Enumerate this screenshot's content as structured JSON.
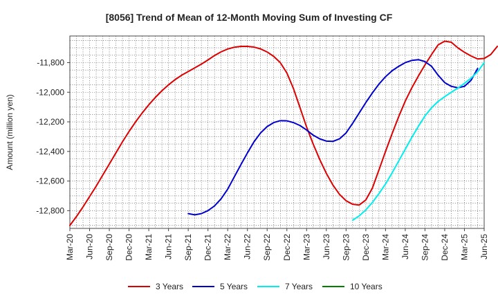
{
  "chart_data": {
    "type": "line",
    "title": "[8056]  Trend of Mean of 12-Month Moving Sum of Investing CF",
    "xlabel": "",
    "ylabel": "Amount (million yen)",
    "ylim": [
      -12920,
      -11620
    ],
    "yticks": [
      -11800,
      -12000,
      -12200,
      -12400,
      -12600,
      -12800
    ],
    "ytick_labels": [
      "-11,800",
      "-12,000",
      "-12,200",
      "-12,400",
      "-12,600",
      "-12,800"
    ],
    "xticks": [
      "Mar-20",
      "Jun-20",
      "Sep-20",
      "Dec-20",
      "Mar-21",
      "Jun-21",
      "Sep-21",
      "Dec-21",
      "Mar-22",
      "Jun-22",
      "Sep-22",
      "Dec-22",
      "Mar-23",
      "Jun-23",
      "Sep-23",
      "Dec-23",
      "Mar-24",
      "Jun-24",
      "Sep-24",
      "Dec-24",
      "Mar-25",
      "Jun-25"
    ],
    "grid": true,
    "legend_position": "bottom",
    "series": [
      {
        "name": "3 Years",
        "color": "#dd0000",
        "start_index": 0,
        "values": [
          -12900,
          -12840,
          -12775,
          -12705,
          -12635,
          -12560,
          -12485,
          -12410,
          -12335,
          -12265,
          -12200,
          -12140,
          -12085,
          -12035,
          -11990,
          -11950,
          -11915,
          -11885,
          -11860,
          -11835,
          -11810,
          -11782,
          -11752,
          -11727,
          -11708,
          -11696,
          -11690,
          -11690,
          -11695,
          -11707,
          -11728,
          -11758,
          -11800,
          -11870,
          -11975,
          -12105,
          -12235,
          -12350,
          -12455,
          -12548,
          -12627,
          -12690,
          -12733,
          -12757,
          -12762,
          -12728,
          -12648,
          -12525,
          -12400,
          -12280,
          -12165,
          -12060,
          -11970,
          -11890,
          -11815,
          -11745,
          -11680,
          -11655,
          -11662,
          -11700,
          -11730,
          -11755,
          -11775,
          -11772,
          -11745,
          -11690
        ]
      },
      {
        "name": "5 Years",
        "color": "#0000cc",
        "start_index": 18,
        "values": [
          -12820,
          -12828,
          -12820,
          -12800,
          -12768,
          -12720,
          -12655,
          -12572,
          -12490,
          -12410,
          -12335,
          -12275,
          -12232,
          -12205,
          -12192,
          -12193,
          -12205,
          -12225,
          -12255,
          -12290,
          -12315,
          -12330,
          -12332,
          -12315,
          -12275,
          -12210,
          -12140,
          -12070,
          -12005,
          -11945,
          -11895,
          -11855,
          -11825,
          -11800,
          -11785,
          -11780,
          -11793,
          -11825,
          -11885,
          -11935,
          -11960,
          -11970,
          -11960,
          -11920,
          -11840
        ]
      },
      {
        "name": "7 Years",
        "color": "#00eeee",
        "start_index": 43,
        "values": [
          -12865,
          -12835,
          -12795,
          -12745,
          -12685,
          -12620,
          -12545,
          -12465,
          -12385,
          -12305,
          -12230,
          -12160,
          -12105,
          -12062,
          -12030,
          -12000,
          -11972,
          -11940,
          -11905,
          -11862,
          -11800
        ]
      },
      {
        "name": "10 Years",
        "color": "#008000",
        "start_index": 0,
        "values": []
      }
    ]
  }
}
